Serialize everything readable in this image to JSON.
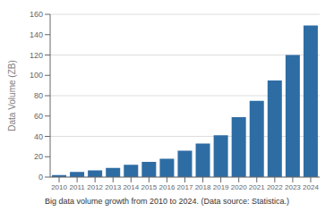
{
  "chart_data": {
    "type": "bar",
    "ylabel": "Data Volume (ZB)",
    "caption": "Big data volume growth from 2010 to 2024. (Data source: Statistica.)",
    "categories": [
      "2010",
      "2011",
      "2012",
      "2013",
      "2014",
      "2015",
      "2016",
      "2017",
      "2018",
      "2019",
      "2020",
      "2021",
      "2022",
      "2023",
      "2024"
    ],
    "values": [
      2,
      5,
      6.5,
      9,
      12,
      15,
      18,
      26,
      33,
      41,
      59,
      75,
      95,
      120,
      149
    ],
    "color": "#2E6DA4",
    "ylim": [
      0,
      160
    ],
    "yticks": [
      0,
      20,
      40,
      60,
      80,
      100,
      120,
      140,
      160
    ],
    "grid": true
  }
}
